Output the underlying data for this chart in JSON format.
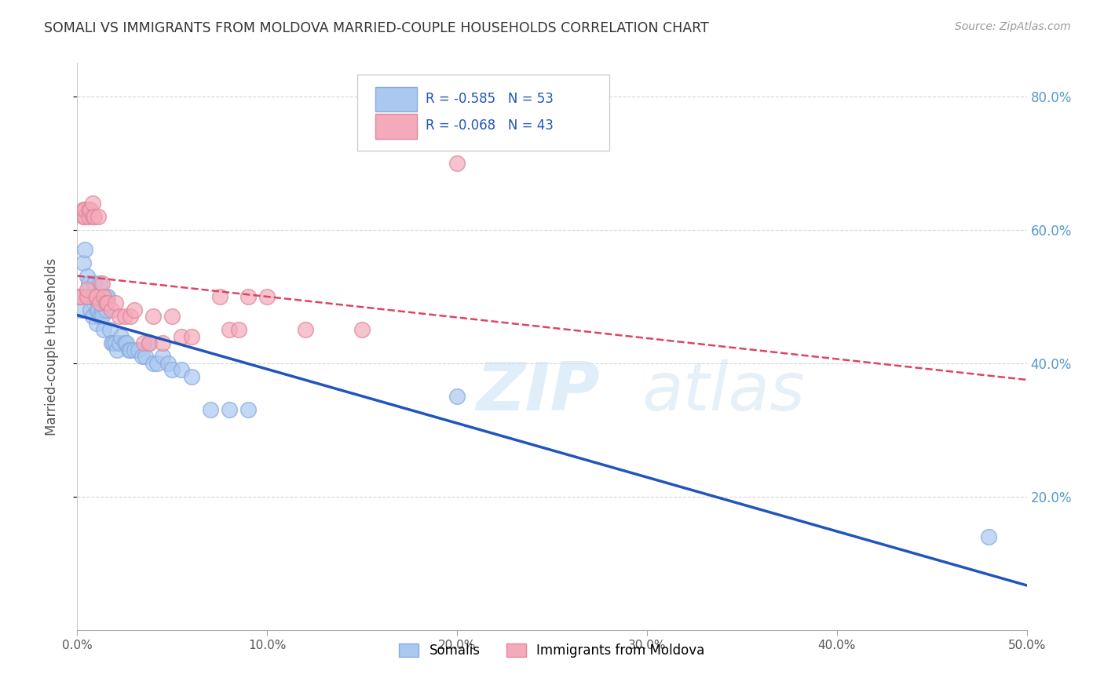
{
  "title": "SOMALI VS IMMIGRANTS FROM MOLDOVA MARRIED-COUPLE HOUSEHOLDS CORRELATION CHART",
  "source": "Source: ZipAtlas.com",
  "ylabel": "Married-couple Households",
  "xmin": 0.0,
  "xmax": 0.5,
  "ymin": 0.0,
  "ymax": 0.85,
  "yticks": [
    0.2,
    0.4,
    0.6,
    0.8
  ],
  "xticks": [
    0.0,
    0.1,
    0.2,
    0.3,
    0.4,
    0.5
  ],
  "r_somali": "-0.585",
  "n_somali": "53",
  "r_moldova": "-0.068",
  "n_moldova": "43",
  "somali_color": "#aac8f0",
  "somali_edge_color": "#88aadd",
  "moldova_color": "#f5aabb",
  "moldova_edge_color": "#dd8899",
  "somali_line_color": "#2255bb",
  "moldova_line_color": "#dd4466",
  "watermark_zip": "ZIP",
  "watermark_atlas": "atlas",
  "background_color": "#ffffff",
  "grid_color": "#cccccc",
  "right_tick_color": "#5599cc",
  "somali_x": [
    0.001,
    0.002,
    0.003,
    0.004,
    0.005,
    0.005,
    0.006,
    0.007,
    0.007,
    0.008,
    0.008,
    0.009,
    0.01,
    0.01,
    0.01,
    0.011,
    0.011,
    0.012,
    0.012,
    0.013,
    0.013,
    0.014,
    0.015,
    0.015,
    0.016,
    0.017,
    0.018,
    0.019,
    0.02,
    0.021,
    0.022,
    0.023,
    0.025,
    0.026,
    0.027,
    0.028,
    0.03,
    0.032,
    0.034,
    0.036,
    0.038,
    0.04,
    0.042,
    0.045,
    0.048,
    0.05,
    0.055,
    0.06,
    0.07,
    0.08,
    0.09,
    0.2,
    0.48
  ],
  "somali_y": [
    0.5,
    0.48,
    0.55,
    0.57,
    0.53,
    0.5,
    0.52,
    0.5,
    0.48,
    0.5,
    0.47,
    0.52,
    0.5,
    0.48,
    0.46,
    0.5,
    0.48,
    0.52,
    0.47,
    0.48,
    0.47,
    0.45,
    0.5,
    0.48,
    0.5,
    0.45,
    0.43,
    0.43,
    0.43,
    0.42,
    0.43,
    0.44,
    0.43,
    0.43,
    0.42,
    0.42,
    0.42,
    0.42,
    0.41,
    0.41,
    0.43,
    0.4,
    0.4,
    0.41,
    0.4,
    0.39,
    0.39,
    0.38,
    0.33,
    0.33,
    0.33,
    0.35,
    0.14
  ],
  "moldova_x": [
    0.001,
    0.002,
    0.003,
    0.003,
    0.004,
    0.004,
    0.005,
    0.005,
    0.006,
    0.006,
    0.007,
    0.008,
    0.008,
    0.009,
    0.01,
    0.01,
    0.011,
    0.012,
    0.013,
    0.014,
    0.015,
    0.016,
    0.018,
    0.02,
    0.022,
    0.025,
    0.028,
    0.03,
    0.035,
    0.038,
    0.04,
    0.045,
    0.05,
    0.055,
    0.06,
    0.075,
    0.08,
    0.085,
    0.09,
    0.1,
    0.12,
    0.15,
    0.2
  ],
  "moldova_y": [
    0.5,
    0.5,
    0.62,
    0.63,
    0.62,
    0.63,
    0.5,
    0.51,
    0.62,
    0.63,
    0.63,
    0.62,
    0.64,
    0.62,
    0.5,
    0.5,
    0.62,
    0.49,
    0.52,
    0.5,
    0.49,
    0.49,
    0.48,
    0.49,
    0.47,
    0.47,
    0.47,
    0.48,
    0.43,
    0.43,
    0.47,
    0.43,
    0.47,
    0.44,
    0.44,
    0.5,
    0.45,
    0.45,
    0.5,
    0.5,
    0.45,
    0.45,
    0.7
  ]
}
